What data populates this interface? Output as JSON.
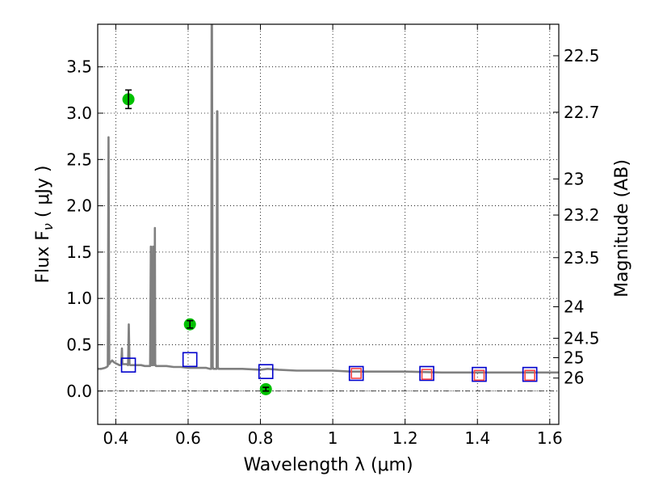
{
  "chart_data": {
    "type": "scatter",
    "xlabel": "Wavelength  λ (μm)",
    "ylabel": "Flux  F",
    "ylabel_sub": "ν",
    "ylabel_unit": " ( μJy )",
    "ylabel_right": "Magnitude (AB)",
    "xlim": [
      0.35,
      1.625
    ],
    "ylim": [
      -0.36,
      3.96
    ],
    "grid": true,
    "x_ticks": [
      0.4,
      0.6,
      0.8,
      1.0,
      1.2,
      1.4,
      1.6
    ],
    "x_tick_labels": [
      "0.4",
      "0.6",
      "0.8",
      "1",
      "1.2",
      "1.4",
      "1.6"
    ],
    "y_ticks": [
      0.0,
      0.5,
      1.0,
      1.5,
      2.0,
      2.5,
      3.0,
      3.5
    ],
    "y_tick_labels": [
      "0.0",
      "0.5",
      "1.0",
      "1.5",
      "2.0",
      "2.5",
      "3.0",
      "3.5"
    ],
    "right_ticks": [
      {
        "flux": 3.62,
        "label": "22.5"
      },
      {
        "flux": 3.01,
        "label": "22.7"
      },
      {
        "flux": 2.29,
        "label": "23"
      },
      {
        "flux": 1.9,
        "label": "23.2"
      },
      {
        "flux": 1.44,
        "label": "23.5"
      },
      {
        "flux": 0.91,
        "label": "24"
      },
      {
        "flux": 0.57,
        "label": "24.5"
      },
      {
        "flux": 0.36,
        "label": "25"
      },
      {
        "flux": 0.14,
        "label": "26"
      }
    ],
    "series": [
      {
        "name": "model_spectrum",
        "kind": "line",
        "color": "#808080",
        "x": [
          0.35,
          0.36,
          0.37,
          0.375,
          0.378,
          0.38,
          0.382,
          0.385,
          0.39,
          0.395,
          0.4,
          0.405,
          0.41,
          0.415,
          0.417,
          0.418,
          0.42,
          0.425,
          0.43,
          0.434,
          0.436,
          0.438,
          0.44,
          0.45,
          0.46,
          0.47,
          0.48,
          0.49,
          0.495,
          0.497,
          0.499,
          0.5,
          0.502,
          0.503,
          0.504,
          0.506,
          0.507,
          0.508,
          0.509,
          0.511,
          0.513,
          0.52,
          0.54,
          0.56,
          0.58,
          0.6,
          0.62,
          0.64,
          0.65,
          0.66,
          0.662,
          0.664,
          0.665,
          0.666,
          0.668,
          0.67,
          0.672,
          0.674,
          0.676,
          0.678,
          0.679,
          0.68,
          0.681,
          0.682,
          0.684,
          0.686,
          0.7,
          0.75,
          0.8,
          0.82,
          0.85,
          0.9,
          0.95,
          1.0,
          1.05,
          1.1,
          1.2,
          1.3,
          1.4,
          1.5,
          1.625
        ],
        "y": [
          0.24,
          0.24,
          0.25,
          0.26,
          0.27,
          2.74,
          0.29,
          0.31,
          0.33,
          0.31,
          0.3,
          0.29,
          0.28,
          0.28,
          0.46,
          0.3,
          0.29,
          0.29,
          0.29,
          0.28,
          0.72,
          0.29,
          0.28,
          0.28,
          0.28,
          0.28,
          0.27,
          0.27,
          0.27,
          1.56,
          0.28,
          0.28,
          0.28,
          1.56,
          0.29,
          0.28,
          0.28,
          1.76,
          0.29,
          0.27,
          0.27,
          0.27,
          0.27,
          0.26,
          0.26,
          0.25,
          0.25,
          0.25,
          0.25,
          0.24,
          0.24,
          0.24,
          3.96,
          3.96,
          0.26,
          0.24,
          0.24,
          0.24,
          0.24,
          0.24,
          0.24,
          3.02,
          3.02,
          0.26,
          0.24,
          0.24,
          0.24,
          0.24,
          0.23,
          0.24,
          0.23,
          0.22,
          0.22,
          0.22,
          0.21,
          0.21,
          0.21,
          0.2,
          0.2,
          0.2,
          0.2
        ]
      },
      {
        "name": "observed_photometry",
        "kind": "scatter",
        "marker": "circle",
        "color": "#00c000",
        "x": [
          0.435,
          0.605,
          0.815
        ],
        "y": [
          3.15,
          0.72,
          0.02
        ],
        "yerr": [
          0.1,
          0.04,
          0.02
        ]
      },
      {
        "name": "model_photometry",
        "kind": "scatter",
        "marker": "square",
        "color": "#0000cc",
        "x": [
          0.435,
          0.605,
          0.815,
          1.065,
          1.26,
          1.405,
          1.545
        ],
        "y": [
          0.28,
          0.34,
          0.21,
          0.19,
          0.19,
          0.18,
          0.18
        ]
      },
      {
        "name": "model_photometry_nir",
        "kind": "scatter",
        "marker": "square",
        "color": "#ff4444",
        "x": [
          1.065,
          1.26,
          1.405,
          1.545
        ],
        "y": [
          0.19,
          0.18,
          0.17,
          0.17
        ]
      }
    ]
  }
}
